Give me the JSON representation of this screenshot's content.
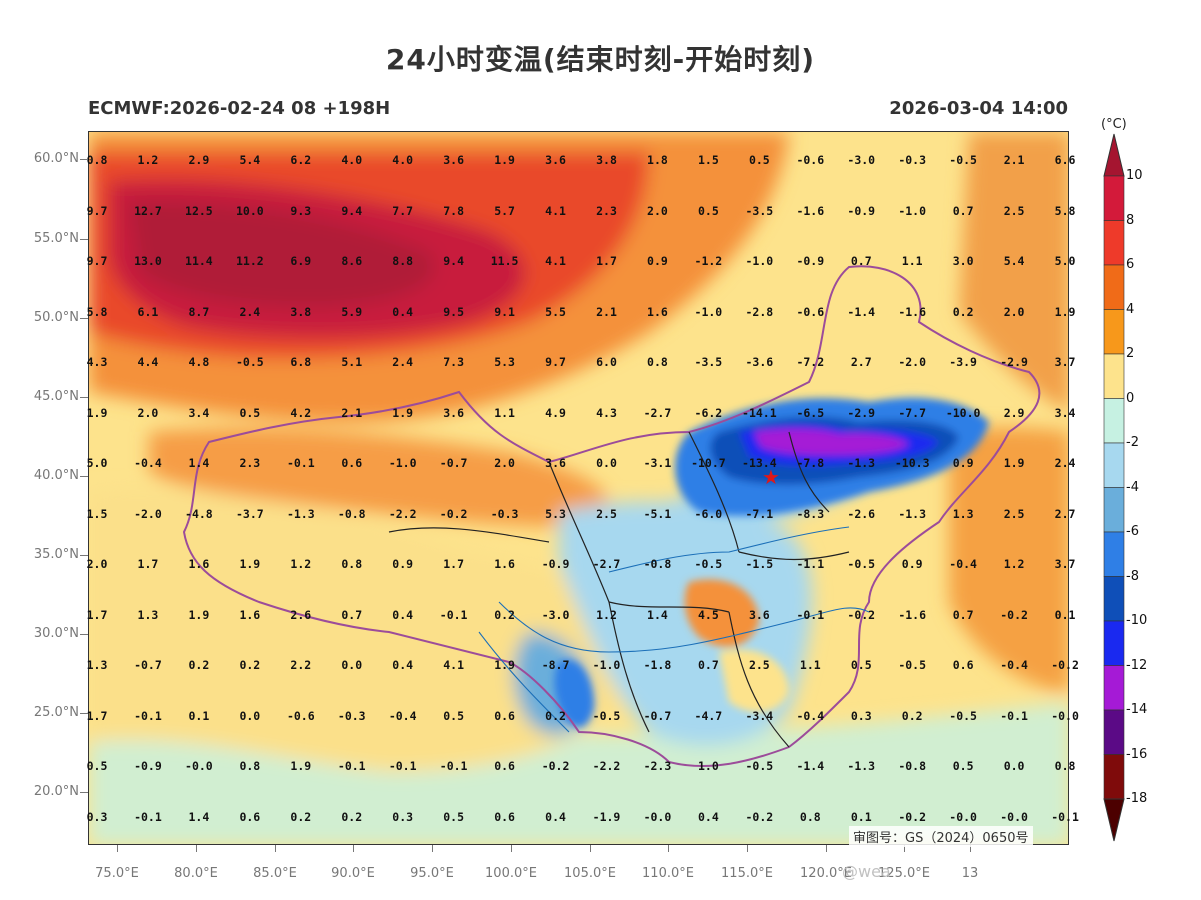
{
  "title": "24小时变温(结束时刻-开始时刻)",
  "model_run": "ECMWF:2026-02-24 08 +198H",
  "valid_time": "2026-03-04 14:00",
  "unit": "(°C)",
  "review_number": "审图号：GS（2024）0650号",
  "watermark": "@wea",
  "map_extent": {
    "lon_min": 73,
    "lon_max": 136,
    "lat_min": 16.5,
    "lat_max": 62.5
  },
  "lat_ticks": [
    "60.0°N",
    "55.0°N",
    "50.0°N",
    "45.0°N",
    "40.0°N",
    "35.0°N",
    "30.0°N",
    "25.0°N",
    "20.0°N"
  ],
  "lon_ticks": [
    "75.0°E",
    "80.0°E",
    "85.0°E",
    "90.0°E",
    "95.0°E",
    "100.0°E",
    "105.0°E",
    "110.0°E",
    "115.0°E",
    "120.0°E",
    "125.0°E",
    "13"
  ],
  "colorbar": {
    "labels": [
      "10",
      "8",
      "6",
      "4",
      "2",
      "0",
      "-2",
      "-4",
      "-6",
      "-8",
      "-10",
      "-12",
      "-14",
      "-16",
      "-18"
    ],
    "colors": [
      "#a51530",
      "#d31a3a",
      "#ee3a2a",
      "#f06b18",
      "#f7981b",
      "#fde38c",
      "#c6f1e2",
      "#a7d8ef",
      "#6aaedb",
      "#2f7fe6",
      "#0f4fb8",
      "#1a29f0",
      "#a51ad6",
      "#5b0a86",
      "#7f0b0b",
      "#4c0000"
    ]
  },
  "marker": {
    "name": "Beijing",
    "symbol": "★",
    "color": "#e01818"
  },
  "grid_values": [
    [
      "0.8",
      "1.2",
      "2.9",
      "5.4",
      "6.2",
      "4.0",
      "4.0",
      "3.6",
      "1.9",
      "3.6",
      "3.8",
      "1.8",
      "1.5",
      "0.5",
      "-0.6",
      "-3.0",
      "-0.3",
      "-0.5",
      "2.1",
      "6.6"
    ],
    [
      "9.7",
      "12.7",
      "12.5",
      "10.0",
      "9.3",
      "9.4",
      "7.7",
      "7.8",
      "5.7",
      "4.1",
      "2.3",
      "2.0",
      "0.5",
      "-3.5",
      "-1.6",
      "-0.9",
      "-1.0",
      "0.7",
      "2.5",
      "5.8"
    ],
    [
      "9.7",
      "13.0",
      "11.4",
      "11.2",
      "6.9",
      "8.6",
      "8.8",
      "9.4",
      "11.5",
      "4.1",
      "1.7",
      "0.9",
      "-1.2",
      "-1.0",
      "-0.9",
      "0.7",
      "1.1",
      "3.0",
      "5.4",
      "5.0"
    ],
    [
      "5.8",
      "6.1",
      "8.7",
      "2.4",
      "3.8",
      "5.9",
      "0.4",
      "9.5",
      "9.1",
      "5.5",
      "2.1",
      "1.6",
      "-1.0",
      "-2.8",
      "-0.6",
      "-1.4",
      "-1.6",
      "0.2",
      "2.0",
      "1.9"
    ],
    [
      "4.3",
      "4.4",
      "4.8",
      "-0.5",
      "6.8",
      "5.1",
      "2.4",
      "7.3",
      "5.3",
      "9.7",
      "6.0",
      "0.8",
      "-3.5",
      "-3.6",
      "-7.2",
      "2.7",
      "-2.0",
      "-3.9",
      "-2.9",
      "3.7"
    ],
    [
      "1.9",
      "2.0",
      "3.4",
      "0.5",
      "4.2",
      "2.1",
      "1.9",
      "3.6",
      "1.1",
      "4.9",
      "4.3",
      "-2.7",
      "-6.2",
      "-14.1",
      "-6.5",
      "-2.9",
      "-7.7",
      "-10.0",
      "2.9",
      "3.4"
    ],
    [
      "5.0",
      "-0.4",
      "1.4",
      "2.3",
      "-0.1",
      "0.6",
      "-1.0",
      "-0.7",
      "2.0",
      "3.6",
      "0.0",
      "-3.1",
      "-10.7",
      "-13.4",
      "-7.8",
      "-1.3",
      "-10.3",
      "0.9",
      "1.9",
      "2.4"
    ],
    [
      "1.5",
      "-2.0",
      "-4.8",
      "-3.7",
      "-1.3",
      "-0.8",
      "-2.2",
      "-0.2",
      "-0.3",
      "5.3",
      "2.5",
      "-5.1",
      "-6.0",
      "-7.1",
      "-8.3",
      "-2.6",
      "-1.3",
      "1.3",
      "2.5",
      "2.7"
    ],
    [
      "2.0",
      "1.7",
      "1.6",
      "1.9",
      "1.2",
      "0.8",
      "0.9",
      "1.7",
      "1.6",
      "-0.9",
      "-2.7",
      "-0.8",
      "-0.5",
      "-1.5",
      "-1.1",
      "-0.5",
      "0.9",
      "-0.4",
      "1.2",
      "3.7"
    ],
    [
      "1.7",
      "1.3",
      "1.9",
      "1.6",
      "2.6",
      "0.7",
      "0.4",
      "-0.1",
      "0.2",
      "-3.0",
      "1.2",
      "1.4",
      "4.5",
      "3.6",
      "-0.1",
      "-0.2",
      "-1.6",
      "0.7",
      "-0.2",
      "0.1"
    ],
    [
      "1.3",
      "-0.7",
      "0.2",
      "0.2",
      "2.2",
      "0.0",
      "0.4",
      "4.1",
      "1.9",
      "-8.7",
      "-1.0",
      "-1.8",
      "0.7",
      "2.5",
      "1.1",
      "0.5",
      "-0.5",
      "0.6",
      "-0.4",
      "-0.2"
    ],
    [
      "1.7",
      "-0.1",
      "0.1",
      "0.0",
      "-0.6",
      "-0.3",
      "-0.4",
      "0.5",
      "0.6",
      "0.2",
      "-0.5",
      "-0.7",
      "-4.7",
      "-3.4",
      "-0.4",
      "0.3",
      "0.2",
      "-0.5",
      "-0.1",
      "-0.0"
    ],
    [
      "0.5",
      "-0.9",
      "-0.0",
      "0.8",
      "1.9",
      "-0.1",
      "-0.1",
      "-0.1",
      "0.6",
      "-0.2",
      "-2.2",
      "-2.3",
      "1.0",
      "-0.5",
      "-1.4",
      "-1.3",
      "-0.8",
      "0.5",
      "0.0",
      "0.8"
    ],
    [
      "0.3",
      "-0.1",
      "1.4",
      "0.6",
      "0.2",
      "0.2",
      "0.3",
      "0.5",
      "0.6",
      "0.4",
      "-1.9",
      "-0.0",
      "0.4",
      "-0.2",
      "0.8",
      "0.1",
      "-0.2",
      "-0.0",
      "-0.0",
      "-0.1"
    ]
  ]
}
